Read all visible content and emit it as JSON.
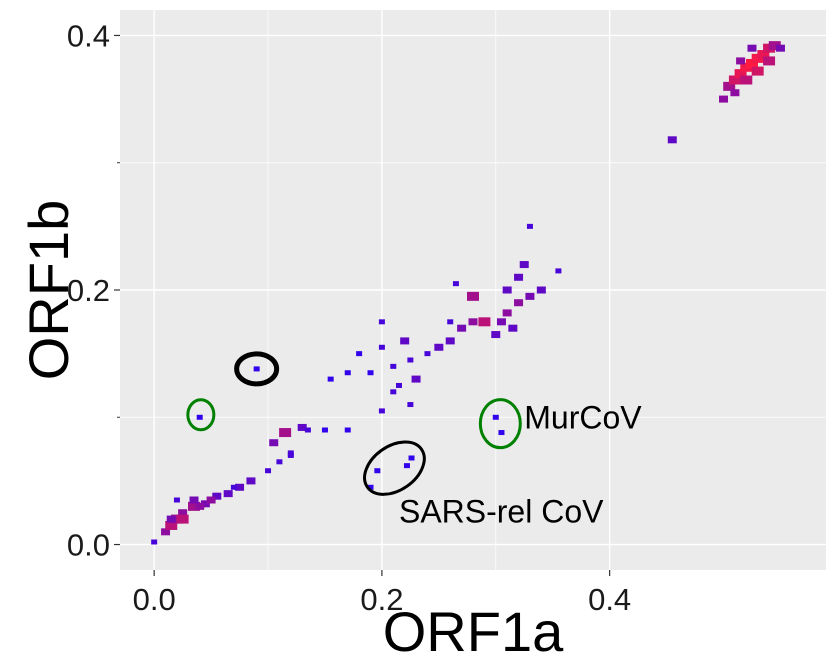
{
  "chart_data": {
    "type": "heatmap",
    "xlabel": "ORF1a",
    "ylabel": "ORF1b",
    "xlim": [
      -0.03,
      0.59
    ],
    "ylim": [
      -0.02,
      0.42
    ],
    "x_ticks": [
      0.0,
      0.2,
      0.4
    ],
    "x_tick_labels": [
      "0.0",
      "0.2",
      "0.4"
    ],
    "y_ticks": [
      0.0,
      0.2,
      0.4
    ],
    "y_tick_labels": [
      "0.0",
      "0.2",
      "0.4"
    ],
    "grid": true,
    "colors": {
      "panel": "#EBEBEB",
      "grid": "#FFFFFF",
      "low": "#1A00FF",
      "high": "#FF1A40"
    },
    "points": [
      [
        0.0,
        0.002,
        0.2
      ],
      [
        0.01,
        0.01,
        0.5
      ],
      [
        0.015,
        0.015,
        0.7
      ],
      [
        0.02,
        0.02,
        0.6
      ],
      [
        0.025,
        0.025,
        0.5
      ],
      [
        0.035,
        0.03,
        0.6
      ],
      [
        0.045,
        0.032,
        0.4
      ],
      [
        0.055,
        0.038,
        0.3
      ],
      [
        0.065,
        0.04,
        0.3
      ],
      [
        0.075,
        0.045,
        0.3
      ],
      [
        0.085,
        0.05,
        0.3
      ],
      [
        0.1,
        0.058,
        0.2
      ],
      [
        0.11,
        0.065,
        0.2
      ],
      [
        0.12,
        0.072,
        0.2
      ],
      [
        0.105,
        0.08,
        0.4
      ],
      [
        0.115,
        0.088,
        0.6
      ],
      [
        0.13,
        0.092,
        0.3
      ],
      [
        0.12,
        0.07,
        0.2
      ],
      [
        0.07,
        0.045,
        0.2
      ],
      [
        0.04,
        0.03,
        0.5
      ],
      [
        0.025,
        0.02,
        0.7
      ],
      [
        0.015,
        0.02,
        0.4
      ],
      [
        0.02,
        0.035,
        0.2
      ],
      [
        0.135,
        0.09,
        0.2
      ],
      [
        0.15,
        0.09,
        0.1
      ],
      [
        0.17,
        0.09,
        0.1
      ],
      [
        0.035,
        0.035,
        0.4
      ],
      [
        0.05,
        0.035,
        0.5
      ],
      [
        0.04,
        0.1,
        0.1
      ],
      [
        0.09,
        0.138,
        0.1
      ],
      [
        0.3,
        0.1,
        0.1
      ],
      [
        0.305,
        0.088,
        0.1
      ],
      [
        0.196,
        0.058,
        0.1
      ],
      [
        0.19,
        0.045,
        0.1
      ],
      [
        0.222,
        0.062,
        0.1
      ],
      [
        0.226,
        0.068,
        0.1
      ],
      [
        0.2,
        0.105,
        0.2
      ],
      [
        0.21,
        0.12,
        0.2
      ],
      [
        0.21,
        0.14,
        0.2
      ],
      [
        0.22,
        0.16,
        0.3
      ],
      [
        0.225,
        0.145,
        0.2
      ],
      [
        0.215,
        0.125,
        0.2
      ],
      [
        0.24,
        0.15,
        0.2
      ],
      [
        0.25,
        0.155,
        0.3
      ],
      [
        0.26,
        0.16,
        0.3
      ],
      [
        0.27,
        0.17,
        0.4
      ],
      [
        0.28,
        0.175,
        0.5
      ],
      [
        0.29,
        0.175,
        0.7
      ],
      [
        0.31,
        0.182,
        0.5
      ],
      [
        0.32,
        0.19,
        0.5
      ],
      [
        0.33,
        0.195,
        0.4
      ],
      [
        0.31,
        0.2,
        0.3
      ],
      [
        0.32,
        0.21,
        0.3
      ],
      [
        0.325,
        0.22,
        0.3
      ],
      [
        0.33,
        0.25,
        0.2
      ],
      [
        0.355,
        0.215,
        0.2
      ],
      [
        0.34,
        0.2,
        0.3
      ],
      [
        0.28,
        0.195,
        0.6
      ],
      [
        0.265,
        0.205,
        0.2
      ],
      [
        0.26,
        0.175,
        0.2
      ],
      [
        0.2,
        0.175,
        0.2
      ],
      [
        0.2,
        0.155,
        0.2
      ],
      [
        0.19,
        0.135,
        0.1
      ],
      [
        0.18,
        0.15,
        0.1
      ],
      [
        0.17,
        0.135,
        0.1
      ],
      [
        0.155,
        0.13,
        0.1
      ],
      [
        0.3,
        0.165,
        0.3
      ],
      [
        0.305,
        0.175,
        0.4
      ],
      [
        0.315,
        0.17,
        0.3
      ],
      [
        0.23,
        0.13,
        0.3
      ],
      [
        0.225,
        0.11,
        0.2
      ],
      [
        0.455,
        0.318,
        0.3
      ],
      [
        0.5,
        0.35,
        0.5
      ],
      [
        0.505,
        0.36,
        0.6
      ],
      [
        0.51,
        0.365,
        0.8
      ],
      [
        0.515,
        0.37,
        0.9
      ],
      [
        0.52,
        0.375,
        0.95
      ],
      [
        0.525,
        0.378,
        1.0
      ],
      [
        0.53,
        0.382,
        0.95
      ],
      [
        0.535,
        0.385,
        0.9
      ],
      [
        0.54,
        0.39,
        0.8
      ],
      [
        0.545,
        0.392,
        0.6
      ],
      [
        0.55,
        0.39,
        0.4
      ],
      [
        0.51,
        0.355,
        0.5
      ],
      [
        0.52,
        0.365,
        0.7
      ],
      [
        0.53,
        0.372,
        0.8
      ],
      [
        0.54,
        0.38,
        0.7
      ],
      [
        0.515,
        0.38,
        0.5
      ],
      [
        0.525,
        0.39,
        0.4
      ]
    ],
    "annotations": [
      {
        "text": "MurCoV",
        "x": 0.325,
        "y": 0.1
      },
      {
        "text": "SARS-rel CoV",
        "x": 0.215,
        "y": 0.026
      }
    ],
    "highlights": [
      {
        "x": 0.041,
        "y": 0.102,
        "color": "#008000"
      },
      {
        "x": 0.09,
        "y": 0.138,
        "color": "#000000"
      },
      {
        "x": 0.304,
        "y": 0.095,
        "color": "#008000"
      },
      {
        "x": 0.211,
        "y": 0.06,
        "color": "#000000"
      }
    ]
  }
}
